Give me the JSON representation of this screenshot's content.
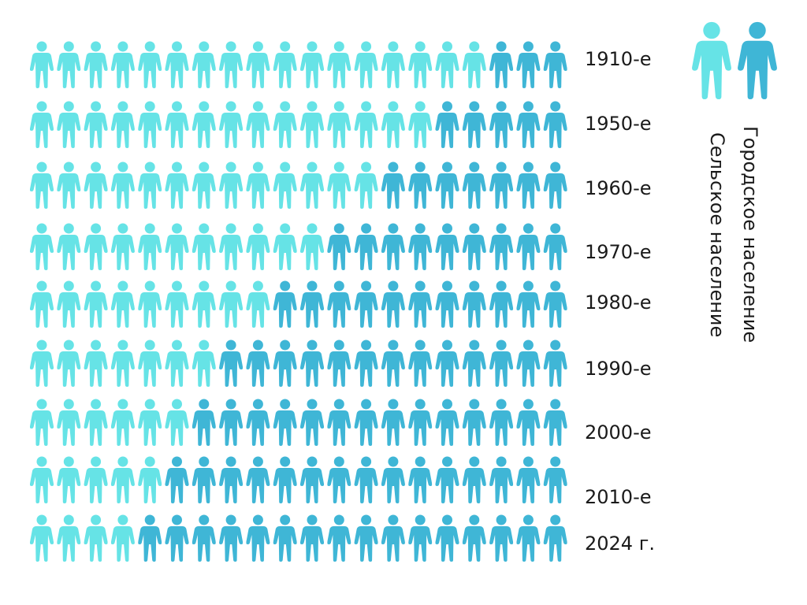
{
  "chart_data": {
    "type": "pictogram",
    "icons_per_row": 20,
    "categories": [
      "1910-е",
      "1950-е",
      "1960-е",
      "1970-е",
      "1980-е",
      "1990-е",
      "2000-е",
      "2010-е",
      "2024 г."
    ],
    "series": [
      {
        "name": "Сельское население",
        "values": [
          17,
          15,
          13,
          11,
          9,
          7,
          6,
          5,
          4
        ],
        "color": "#66e3e6"
      },
      {
        "name": "Городское население",
        "values": [
          3,
          5,
          7,
          9,
          11,
          13,
          14,
          15,
          16
        ],
        "color": "#3fb6d6"
      }
    ],
    "legend": {
      "placement": "right",
      "labels": [
        "Городское население",
        "Сельское население"
      ]
    }
  }
}
